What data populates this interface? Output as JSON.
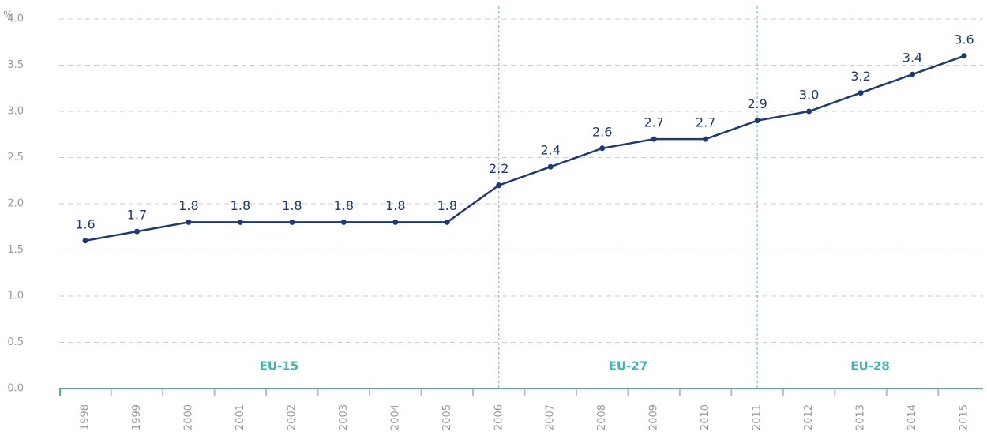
{
  "chart_data": {
    "type": "line",
    "ylabel": "%",
    "categories": [
      "1998",
      "1999",
      "2000",
      "2001",
      "2002",
      "2003",
      "2004",
      "2005",
      "2006",
      "2007",
      "2008",
      "2009",
      "2010",
      "2011",
      "2012",
      "2013",
      "2014",
      "2015"
    ],
    "series": [
      {
        "color": "#1d3a78",
        "values": [
          1.6,
          1.7,
          1.8,
          1.8,
          1.8,
          1.8,
          1.8,
          1.8,
          2.2,
          2.4,
          2.6,
          2.7,
          2.7,
          2.9,
          3.0,
          3.2,
          3.4,
          3.6
        ],
        "value_labels": [
          "1.6",
          "1.7",
          "1.8",
          "1.8",
          "1.8",
          "1.8",
          "1.8",
          "1.8",
          "2.2",
          "2.4",
          "2.6",
          "2.7",
          "2.7",
          "2.9",
          "3.0",
          "3.2",
          "3.4",
          "3.6"
        ]
      }
    ],
    "ylim": [
      0,
      4
    ],
    "yticks": [
      {
        "value": 0,
        "label": "0.0"
      },
      0.5,
      {
        "value": 1,
        "label": "1.0"
      },
      1.5,
      {
        "value": 2,
        "label": "2.0"
      },
      2.5,
      {
        "value": 3,
        "label": "3.0"
      },
      3.5,
      {
        "value": 4,
        "label": "4.0"
      }
    ],
    "grid": true,
    "dividers": [
      "2006",
      "2011"
    ],
    "regions": [
      "EU-15",
      "EU-27",
      "EU-28"
    ]
  }
}
